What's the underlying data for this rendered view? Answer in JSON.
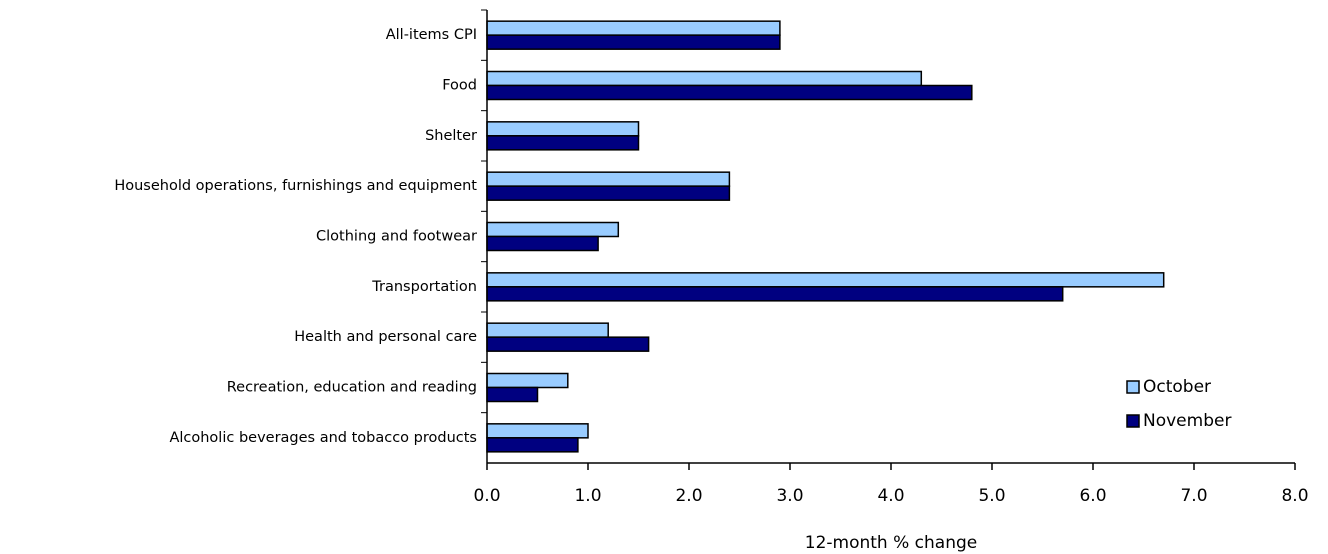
{
  "chart_data": {
    "type": "hbar",
    "x_label": "12-month % change",
    "categories": [
      "All-items CPI",
      "Food",
      "Shelter",
      "Household operations, furnishings and equipment",
      "Clothing and footwear",
      "Transportation",
      "Health and personal care",
      "Recreation, education and reading",
      "Alcoholic beverages and tobacco products"
    ],
    "series": [
      {
        "name": "October",
        "color": "#99ccff",
        "values": [
          2.9,
          4.3,
          1.5,
          2.4,
          1.3,
          6.7,
          1.2,
          0.8,
          1.0
        ]
      },
      {
        "name": "November",
        "color": "#000080",
        "values": [
          2.9,
          4.8,
          1.5,
          2.4,
          1.1,
          5.7,
          1.6,
          0.5,
          0.9
        ]
      }
    ],
    "xlim": [
      0,
      8
    ],
    "xticks": [
      {
        "value": 0,
        "label": "0.0"
      },
      {
        "value": 1,
        "label": "1.0"
      },
      {
        "value": 2,
        "label": "2.0"
      },
      {
        "value": 3,
        "label": "3.0"
      },
      {
        "value": 4,
        "label": "4.0"
      },
      {
        "value": 5,
        "label": "5.0"
      },
      {
        "value": 6,
        "label": "6.0"
      },
      {
        "value": 7,
        "label": "7.0"
      },
      {
        "value": 8,
        "label": "8.0"
      }
    ],
    "legend": "lower right"
  }
}
